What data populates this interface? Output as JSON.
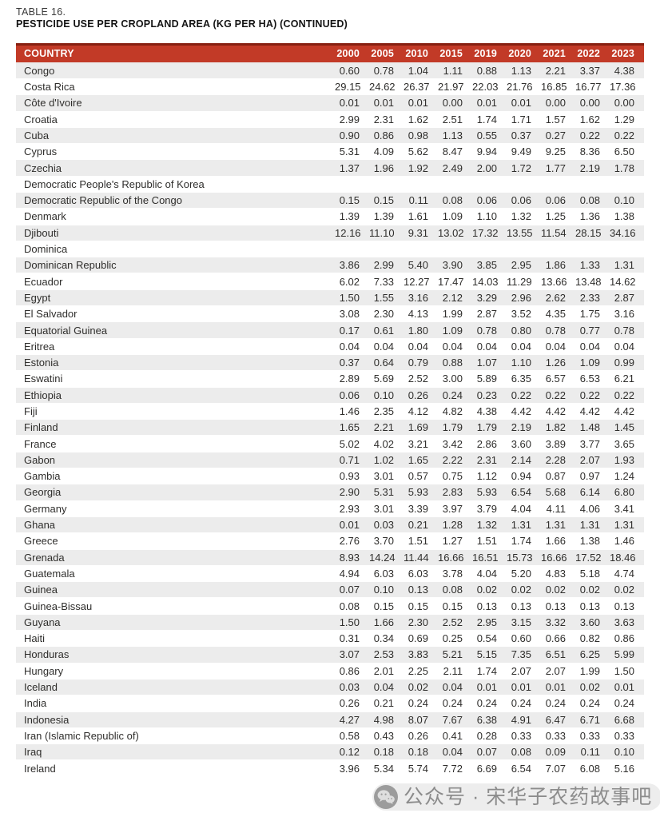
{
  "header": {
    "table_label": "TABLE 16.",
    "table_title": "PESTICIDE USE PER CROPLAND AREA (KG PER HA) (CONTINUED)"
  },
  "table": {
    "columns": [
      "COUNTRY",
      "2000",
      "2005",
      "2010",
      "2015",
      "2019",
      "2020",
      "2021",
      "2022",
      "2023"
    ],
    "rows": [
      {
        "country": "Congo",
        "values": [
          "0.60",
          "0.78",
          "1.04",
          "1.11",
          "0.88",
          "1.13",
          "2.21",
          "3.37",
          "4.38"
        ]
      },
      {
        "country": "Costa Rica",
        "values": [
          "29.15",
          "24.62",
          "26.37",
          "21.97",
          "22.03",
          "21.76",
          "16.85",
          "16.77",
          "17.36"
        ]
      },
      {
        "country": "Côte d'Ivoire",
        "values": [
          "0.01",
          "0.01",
          "0.01",
          "0.00",
          "0.01",
          "0.01",
          "0.00",
          "0.00",
          "0.00"
        ]
      },
      {
        "country": "Croatia",
        "values": [
          "2.99",
          "2.31",
          "1.62",
          "2.51",
          "1.74",
          "1.71",
          "1.57",
          "1.62",
          "1.29"
        ]
      },
      {
        "country": "Cuba",
        "values": [
          "0.90",
          "0.86",
          "0.98",
          "1.13",
          "0.55",
          "0.37",
          "0.27",
          "0.22",
          "0.22"
        ]
      },
      {
        "country": "Cyprus",
        "values": [
          "5.31",
          "4.09",
          "5.62",
          "8.47",
          "9.94",
          "9.49",
          "9.25",
          "8.36",
          "6.50"
        ]
      },
      {
        "country": "Czechia",
        "values": [
          "1.37",
          "1.96",
          "1.92",
          "2.49",
          "2.00",
          "1.72",
          "1.77",
          "2.19",
          "1.78"
        ]
      },
      {
        "country": "Democratic People's Republic of Korea",
        "values": [
          "",
          "",
          "",
          "",
          "",
          "",
          "",
          "",
          ""
        ]
      },
      {
        "country": "Democratic Republic of the Congo",
        "values": [
          "0.15",
          "0.15",
          "0.11",
          "0.08",
          "0.06",
          "0.06",
          "0.06",
          "0.08",
          "0.10"
        ]
      },
      {
        "country": "Denmark",
        "values": [
          "1.39",
          "1.39",
          "1.61",
          "1.09",
          "1.10",
          "1.32",
          "1.25",
          "1.36",
          "1.38"
        ]
      },
      {
        "country": "Djibouti",
        "values": [
          "12.16",
          "11.10",
          "9.31",
          "13.02",
          "17.32",
          "13.55",
          "11.54",
          "28.15",
          "34.16"
        ]
      },
      {
        "country": "Dominica",
        "values": [
          "",
          "",
          "",
          "",
          "",
          "",
          "",
          "",
          ""
        ]
      },
      {
        "country": "Dominican Republic",
        "values": [
          "3.86",
          "2.99",
          "5.40",
          "3.90",
          "3.85",
          "2.95",
          "1.86",
          "1.33",
          "1.31"
        ]
      },
      {
        "country": "Ecuador",
        "values": [
          "6.02",
          "7.33",
          "12.27",
          "17.47",
          "14.03",
          "11.29",
          "13.66",
          "13.48",
          "14.62"
        ]
      },
      {
        "country": "Egypt",
        "values": [
          "1.50",
          "1.55",
          "3.16",
          "2.12",
          "3.29",
          "2.96",
          "2.62",
          "2.33",
          "2.87"
        ]
      },
      {
        "country": "El Salvador",
        "values": [
          "3.08",
          "2.30",
          "4.13",
          "1.99",
          "2.87",
          "3.52",
          "4.35",
          "1.75",
          "3.16"
        ]
      },
      {
        "country": "Equatorial Guinea",
        "values": [
          "0.17",
          "0.61",
          "1.80",
          "1.09",
          "0.78",
          "0.80",
          "0.78",
          "0.77",
          "0.78"
        ]
      },
      {
        "country": "Eritrea",
        "values": [
          "0.04",
          "0.04",
          "0.04",
          "0.04",
          "0.04",
          "0.04",
          "0.04",
          "0.04",
          "0.04"
        ]
      },
      {
        "country": "Estonia",
        "values": [
          "0.37",
          "0.64",
          "0.79",
          "0.88",
          "1.07",
          "1.10",
          "1.26",
          "1.09",
          "0.99"
        ]
      },
      {
        "country": "Eswatini",
        "values": [
          "2.89",
          "5.69",
          "2.52",
          "3.00",
          "5.89",
          "6.35",
          "6.57",
          "6.53",
          "6.21"
        ]
      },
      {
        "country": "Ethiopia",
        "values": [
          "0.06",
          "0.10",
          "0.26",
          "0.24",
          "0.23",
          "0.22",
          "0.22",
          "0.22",
          "0.22"
        ]
      },
      {
        "country": "Fiji",
        "values": [
          "1.46",
          "2.35",
          "4.12",
          "4.82",
          "4.38",
          "4.42",
          "4.42",
          "4.42",
          "4.42"
        ]
      },
      {
        "country": "Finland",
        "values": [
          "1.65",
          "2.21",
          "1.69",
          "1.79",
          "1.79",
          "2.19",
          "1.82",
          "1.48",
          "1.45"
        ]
      },
      {
        "country": "France",
        "values": [
          "5.02",
          "4.02",
          "3.21",
          "3.42",
          "2.86",
          "3.60",
          "3.89",
          "3.77",
          "3.65"
        ]
      },
      {
        "country": "Gabon",
        "values": [
          "0.71",
          "1.02",
          "1.65",
          "2.22",
          "2.31",
          "2.14",
          "2.28",
          "2.07",
          "1.93"
        ]
      },
      {
        "country": "Gambia",
        "values": [
          "0.93",
          "3.01",
          "0.57",
          "0.75",
          "1.12",
          "0.94",
          "0.87",
          "0.97",
          "1.24"
        ]
      },
      {
        "country": "Georgia",
        "values": [
          "2.90",
          "5.31",
          "5.93",
          "2.83",
          "5.93",
          "6.54",
          "5.68",
          "6.14",
          "6.80"
        ]
      },
      {
        "country": "Germany",
        "values": [
          "2.93",
          "3.01",
          "3.39",
          "3.97",
          "3.79",
          "4.04",
          "4.11",
          "4.06",
          "3.41"
        ]
      },
      {
        "country": "Ghana",
        "values": [
          "0.01",
          "0.03",
          "0.21",
          "1.28",
          "1.32",
          "1.31",
          "1.31",
          "1.31",
          "1.31"
        ]
      },
      {
        "country": "Greece",
        "values": [
          "2.76",
          "3.70",
          "1.51",
          "1.27",
          "1.51",
          "1.74",
          "1.66",
          "1.38",
          "1.46"
        ]
      },
      {
        "country": "Grenada",
        "values": [
          "8.93",
          "14.24",
          "11.44",
          "16.66",
          "16.51",
          "15.73",
          "16.66",
          "17.52",
          "18.46"
        ]
      },
      {
        "country": "Guatemala",
        "values": [
          "4.94",
          "6.03",
          "6.03",
          "3.78",
          "4.04",
          "5.20",
          "4.83",
          "5.18",
          "4.74"
        ]
      },
      {
        "country": "Guinea",
        "values": [
          "0.07",
          "0.10",
          "0.13",
          "0.08",
          "0.02",
          "0.02",
          "0.02",
          "0.02",
          "0.02"
        ]
      },
      {
        "country": "Guinea-Bissau",
        "values": [
          "0.08",
          "0.15",
          "0.15",
          "0.15",
          "0.13",
          "0.13",
          "0.13",
          "0.13",
          "0.13"
        ]
      },
      {
        "country": "Guyana",
        "values": [
          "1.50",
          "1.66",
          "2.30",
          "2.52",
          "2.95",
          "3.15",
          "3.32",
          "3.60",
          "3.63"
        ]
      },
      {
        "country": "Haiti",
        "values": [
          "0.31",
          "0.34",
          "0.69",
          "0.25",
          "0.54",
          "0.60",
          "0.66",
          "0.82",
          "0.86"
        ]
      },
      {
        "country": "Honduras",
        "values": [
          "3.07",
          "2.53",
          "3.83",
          "5.21",
          "5.15",
          "7.35",
          "6.51",
          "6.25",
          "5.99"
        ]
      },
      {
        "country": "Hungary",
        "values": [
          "0.86",
          "2.01",
          "2.25",
          "2.11",
          "1.74",
          "2.07",
          "2.07",
          "1.99",
          "1.50"
        ]
      },
      {
        "country": "Iceland",
        "values": [
          "0.03",
          "0.04",
          "0.02",
          "0.04",
          "0.01",
          "0.01",
          "0.01",
          "0.02",
          "0.01"
        ]
      },
      {
        "country": "India",
        "values": [
          "0.26",
          "0.21",
          "0.24",
          "0.24",
          "0.24",
          "0.24",
          "0.24",
          "0.24",
          "0.24"
        ]
      },
      {
        "country": "Indonesia",
        "values": [
          "4.27",
          "4.98",
          "8.07",
          "7.67",
          "6.38",
          "4.91",
          "6.47",
          "6.71",
          "6.68"
        ]
      },
      {
        "country": "Iran (Islamic Republic of)",
        "values": [
          "0.58",
          "0.43",
          "0.26",
          "0.41",
          "0.28",
          "0.33",
          "0.33",
          "0.33",
          "0.33"
        ]
      },
      {
        "country": "Iraq",
        "values": [
          "0.12",
          "0.18",
          "0.18",
          "0.04",
          "0.07",
          "0.08",
          "0.09",
          "0.11",
          "0.10"
        ]
      },
      {
        "country": "Ireland",
        "values": [
          "3.96",
          "5.34",
          "5.74",
          "7.72",
          "6.69",
          "6.54",
          "7.07",
          "6.08",
          "5.16"
        ]
      }
    ]
  },
  "watermark": {
    "icon": "wechat-icon",
    "text": "公众号 · 宋华子农药故事吧"
  },
  "colors": {
    "header_bg": "#c23a27",
    "header_border_top": "#871f10",
    "row_alt_bg": "#ececec",
    "header_text": "#ffffff",
    "body_text": "#2f2e2c",
    "watermark_text": "#7a7a7a"
  }
}
